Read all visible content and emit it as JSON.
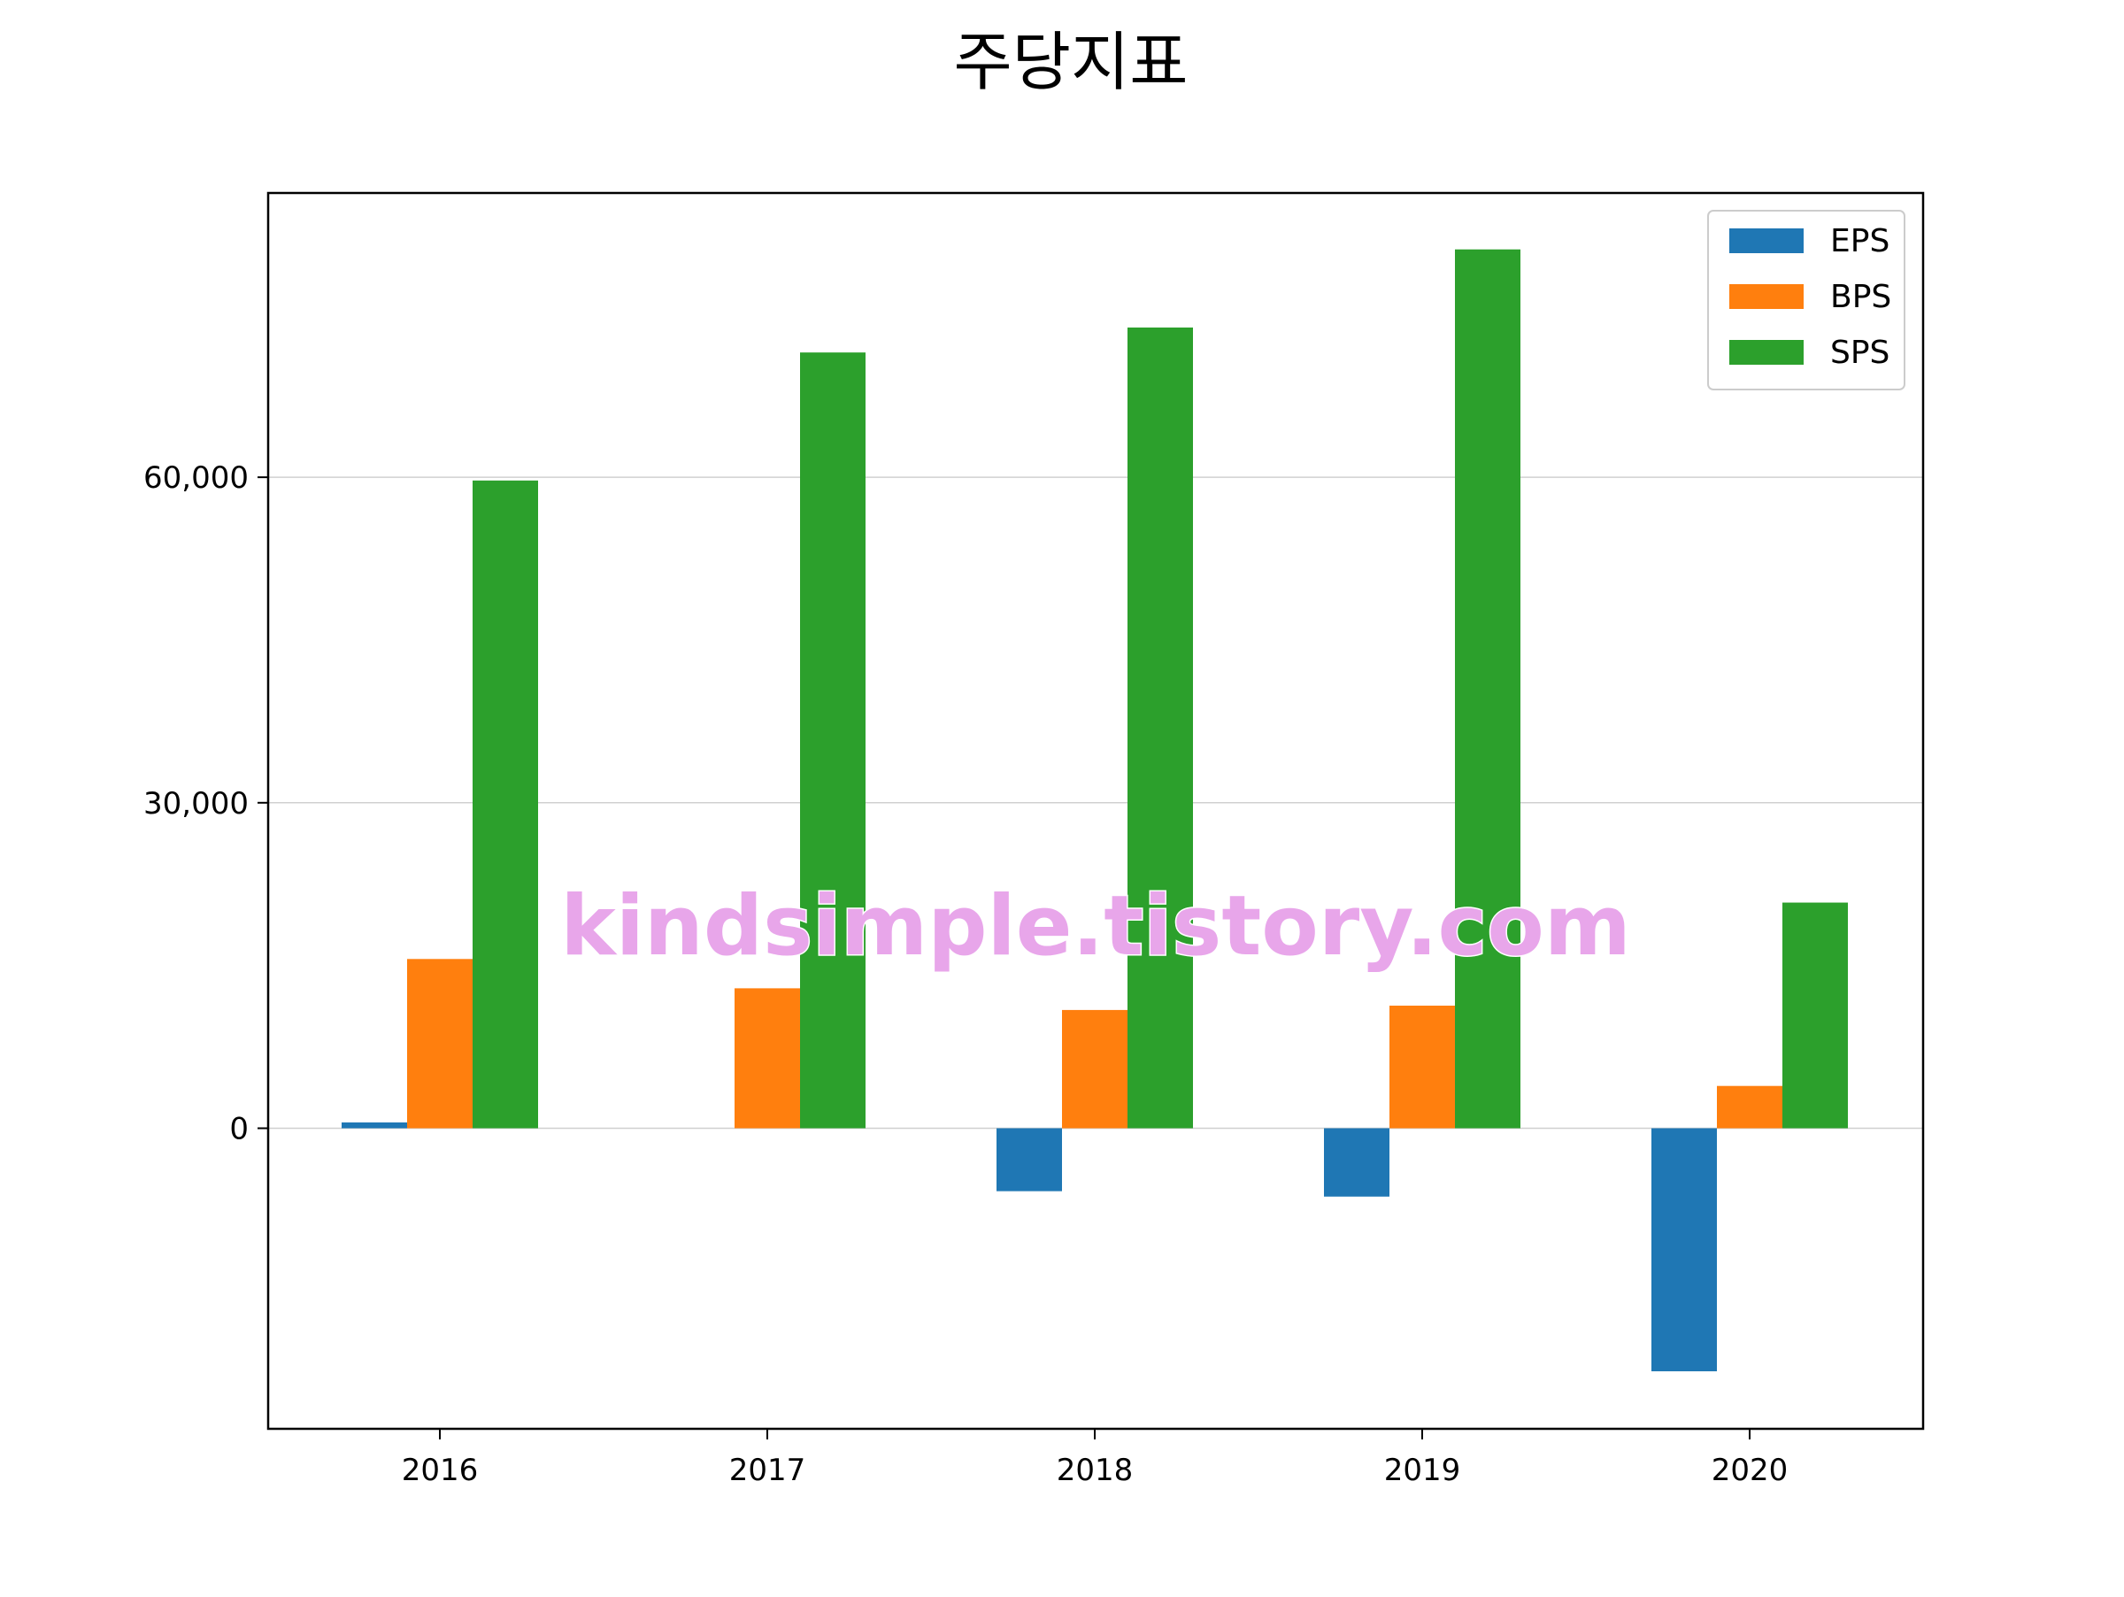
{
  "chart_data": {
    "type": "bar",
    "title": "주당지표",
    "xlabel": "",
    "ylabel": "",
    "categories": [
      "2016",
      "2017",
      "2018",
      "2019",
      "2020"
    ],
    "series": [
      {
        "name": "EPS",
        "color": "#1f77b4",
        "values": [
          540,
          0,
          -5800,
          -6300,
          -22400
        ]
      },
      {
        "name": "BPS",
        "color": "#ff7f0e",
        "values": [
          15600,
          12900,
          10900,
          11300,
          3900
        ]
      },
      {
        "name": "SPS",
        "color": "#2ca02c",
        "values": [
          59700,
          71500,
          73800,
          81000,
          20800
        ]
      }
    ],
    "ylim": [
      -27700,
      86200
    ],
    "yticks": [
      0,
      30000,
      60000
    ],
    "ytick_labels": [
      "0",
      "30,000",
      "60,000"
    ],
    "grid": "horizontal",
    "legend_position": "top-right"
  },
  "watermark": {
    "text": "kindsimple.tistory.com",
    "color": "#e8a6ea"
  }
}
